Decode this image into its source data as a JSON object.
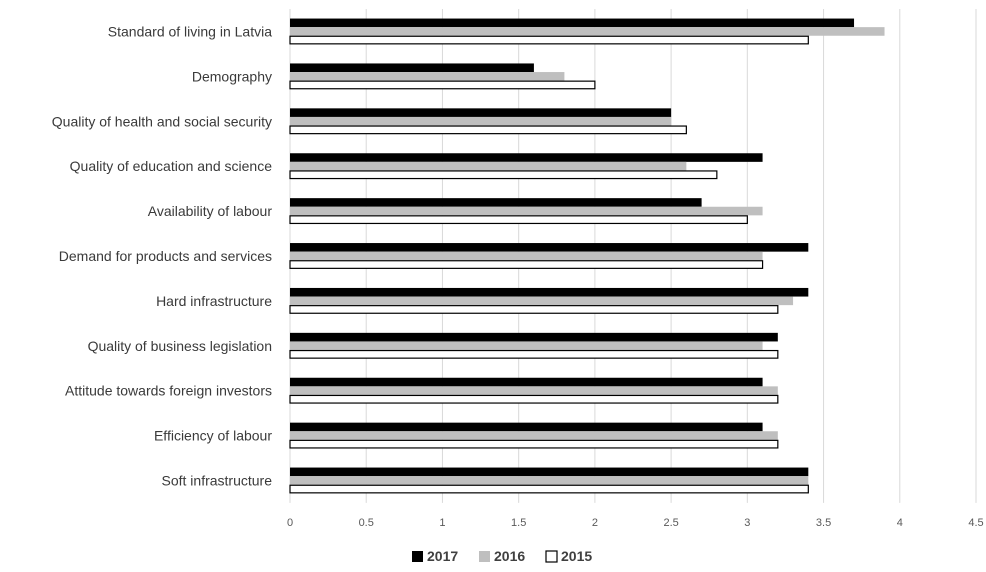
{
  "chart_data": {
    "type": "bar",
    "orientation": "horizontal",
    "title": "",
    "xlabel": "",
    "ylabel": "",
    "xlim": [
      0,
      4.5
    ],
    "x_ticks": [
      "0",
      "0.5",
      "1",
      "1.5",
      "2",
      "2.5",
      "3",
      "3.5",
      "4",
      "4.5"
    ],
    "grid": "vertical",
    "legend_position": "bottom",
    "categories": [
      "Standard of living in Latvia",
      "Demography",
      "Quality of health and social security",
      "Quality of education and science",
      "Availability of labour",
      "Demand for products and services",
      "Hard infrastructure",
      "Quality of business legislation",
      "Attitude towards foreign investors",
      "Efficiency of labour",
      "Soft infrastructure"
    ],
    "series": [
      {
        "name": "2017",
        "color": "#000000",
        "values": [
          3.7,
          1.6,
          2.5,
          3.1,
          2.7,
          3.4,
          3.4,
          3.2,
          3.1,
          3.1,
          3.4
        ]
      },
      {
        "name": "2016",
        "color": "#bfbfbf",
        "values": [
          3.9,
          1.8,
          2.5,
          2.6,
          3.1,
          3.1,
          3.3,
          3.1,
          3.2,
          3.2,
          3.4
        ]
      },
      {
        "name": "2015",
        "color": "#ffffff",
        "values": [
          3.4,
          2.0,
          2.6,
          2.8,
          3.0,
          3.1,
          3.2,
          3.2,
          3.2,
          3.2,
          3.4
        ]
      }
    ]
  }
}
